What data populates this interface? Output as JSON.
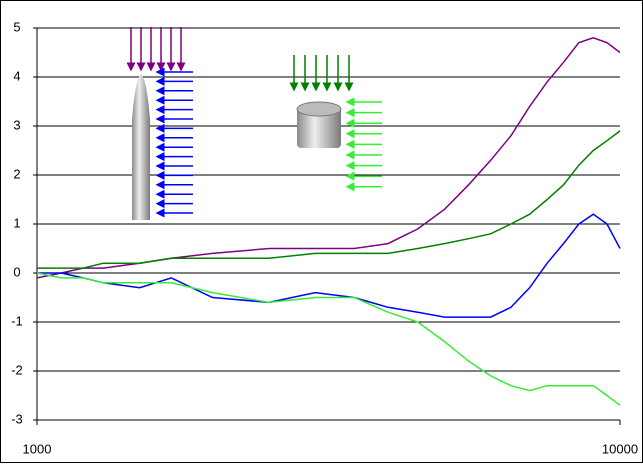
{
  "chart_data": {
    "type": "line",
    "xscale": "log",
    "grid": true,
    "x": [
      1000,
      1100,
      1200,
      1300,
      1500,
      1700,
      2000,
      2500,
      3000,
      3500,
      4000,
      4500,
      5000,
      5500,
      6000,
      6500,
      7000,
      7500,
      8000,
      8500,
      9000,
      9500,
      10000
    ],
    "xlim": [
      1000,
      10000
    ],
    "xticks": [
      1000,
      10000
    ],
    "ylim": [
      -3,
      5
    ],
    "yticks": [
      -3,
      -2,
      -1,
      0,
      1,
      2,
      3,
      4,
      5
    ],
    "series": [
      {
        "color": "#800080",
        "values": [
          -0.1,
          0,
          0.1,
          0.1,
          0.2,
          0.3,
          0.4,
          0.5,
          0.5,
          0.5,
          0.6,
          0.9,
          1.3,
          1.8,
          2.3,
          2.8,
          3.4,
          3.9,
          4.3,
          4.7,
          4.8,
          4.7,
          4.5
        ]
      },
      {
        "color": "#008000",
        "values": [
          0.1,
          0.1,
          0.1,
          0.2,
          0.2,
          0.3,
          0.3,
          0.3,
          0.4,
          0.4,
          0.4,
          0.5,
          0.6,
          0.7,
          0.8,
          1.0,
          1.2,
          1.5,
          1.8,
          2.2,
          2.5,
          2.7,
          2.9
        ]
      },
      {
        "color": "#0000ff",
        "values": [
          0,
          0,
          -0.1,
          -0.2,
          -0.3,
          -0.1,
          -0.5,
          -0.6,
          -0.4,
          -0.5,
          -0.7,
          -0.8,
          -0.9,
          -0.9,
          -0.9,
          -0.7,
          -0.3,
          0.2,
          0.6,
          1.0,
          1.2,
          1.0,
          0.5
        ]
      },
      {
        "color": "#33ee33",
        "values": [
          0,
          -0.1,
          -0.1,
          -0.2,
          -0.2,
          -0.2,
          -0.4,
          -0.6,
          -0.5,
          -0.5,
          -0.8,
          -1.0,
          -1.4,
          -1.8,
          -2.1,
          -2.3,
          -2.4,
          -2.3,
          -2.3,
          -2.3,
          -2.3,
          -2.5,
          -2.7
        ]
      }
    ]
  }
}
